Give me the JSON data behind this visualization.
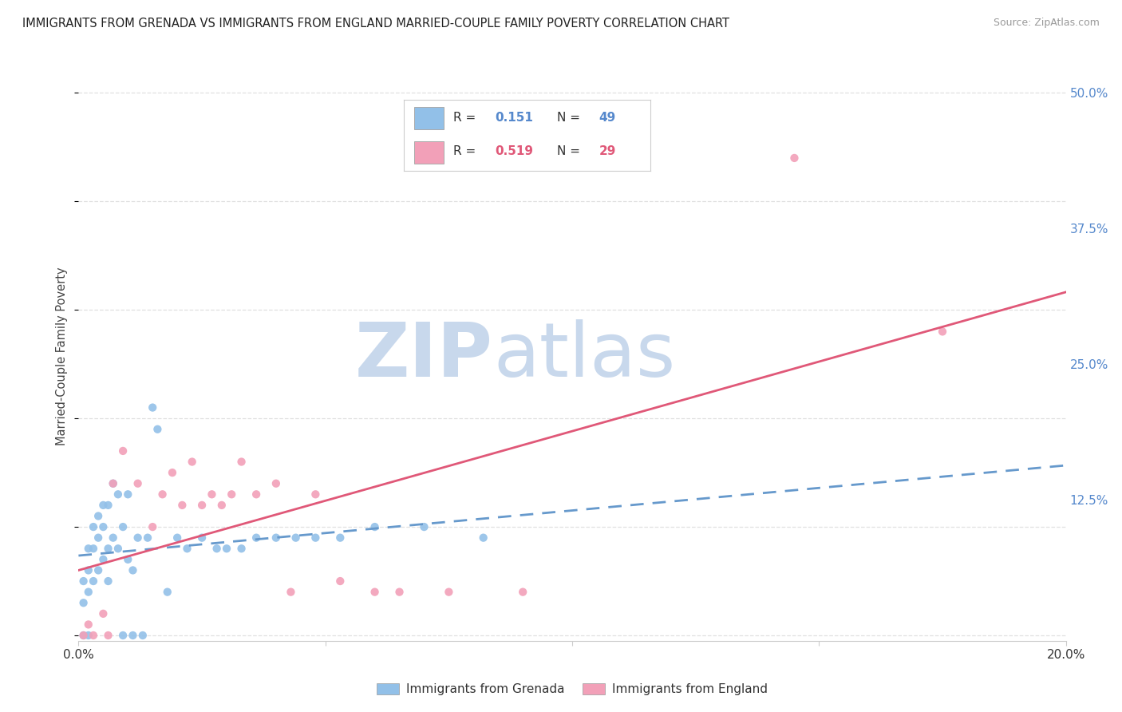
{
  "title": "IMMIGRANTS FROM GRENADA VS IMMIGRANTS FROM ENGLAND MARRIED-COUPLE FAMILY POVERTY CORRELATION CHART",
  "source": "Source: ZipAtlas.com",
  "ylabel": "Married-Couple Family Poverty",
  "xlim": [
    0.0,
    0.2
  ],
  "ylim": [
    -0.005,
    0.52
  ],
  "xticks": [
    0.0,
    0.05,
    0.1,
    0.15,
    0.2
  ],
  "yticks_right": [
    0.0,
    0.125,
    0.25,
    0.375,
    0.5
  ],
  "ytick_labels_right": [
    "",
    "12.5%",
    "25.0%",
    "37.5%",
    "50.0%"
  ],
  "xtick_labels": [
    "0.0%",
    "",
    "",
    "",
    "20.0%"
  ],
  "background_color": "#ffffff",
  "grid_color": "#e0e0e0",
  "watermark_zip": "ZIP",
  "watermark_atlas": "atlas",
  "watermark_color_zip": "#c8d8ec",
  "watermark_color_atlas": "#c8d8ec",
  "legend_R1": "0.151",
  "legend_N1": "49",
  "legend_R2": "0.519",
  "legend_N2": "29",
  "color_grenada": "#92c0e8",
  "color_england": "#f2a0b8",
  "color_grenada_line": "#6699cc",
  "color_england_line": "#e05878",
  "legend_label1": "Immigrants from Grenada",
  "legend_label2": "Immigrants from England",
  "grenada_x": [
    0.001,
    0.001,
    0.001,
    0.002,
    0.002,
    0.002,
    0.002,
    0.003,
    0.003,
    0.003,
    0.004,
    0.004,
    0.004,
    0.005,
    0.005,
    0.005,
    0.006,
    0.006,
    0.006,
    0.007,
    0.007,
    0.008,
    0.008,
    0.009,
    0.009,
    0.01,
    0.01,
    0.011,
    0.011,
    0.012,
    0.013,
    0.014,
    0.015,
    0.016,
    0.018,
    0.02,
    0.022,
    0.025,
    0.028,
    0.03,
    0.033,
    0.036,
    0.04,
    0.044,
    0.048,
    0.053,
    0.06,
    0.07,
    0.082
  ],
  "grenada_y": [
    0.0,
    0.03,
    0.05,
    0.0,
    0.04,
    0.06,
    0.08,
    0.05,
    0.08,
    0.1,
    0.06,
    0.09,
    0.11,
    0.07,
    0.1,
    0.12,
    0.05,
    0.08,
    0.12,
    0.09,
    0.14,
    0.08,
    0.13,
    0.0,
    0.1,
    0.07,
    0.13,
    0.06,
    0.0,
    0.09,
    0.0,
    0.09,
    0.21,
    0.19,
    0.04,
    0.09,
    0.08,
    0.09,
    0.08,
    0.08,
    0.08,
    0.09,
    0.09,
    0.09,
    0.09,
    0.09,
    0.1,
    0.1,
    0.09
  ],
  "england_x": [
    0.001,
    0.002,
    0.003,
    0.005,
    0.006,
    0.007,
    0.009,
    0.012,
    0.015,
    0.017,
    0.019,
    0.021,
    0.023,
    0.025,
    0.027,
    0.029,
    0.031,
    0.033,
    0.036,
    0.04,
    0.043,
    0.048,
    0.053,
    0.06,
    0.065,
    0.075,
    0.09,
    0.145,
    0.175
  ],
  "england_y": [
    0.0,
    0.01,
    0.0,
    0.02,
    0.0,
    0.14,
    0.17,
    0.14,
    0.1,
    0.13,
    0.15,
    0.12,
    0.16,
    0.12,
    0.13,
    0.12,
    0.13,
    0.16,
    0.13,
    0.14,
    0.04,
    0.13,
    0.05,
    0.04,
    0.04,
    0.04,
    0.04,
    0.44,
    0.28
  ]
}
